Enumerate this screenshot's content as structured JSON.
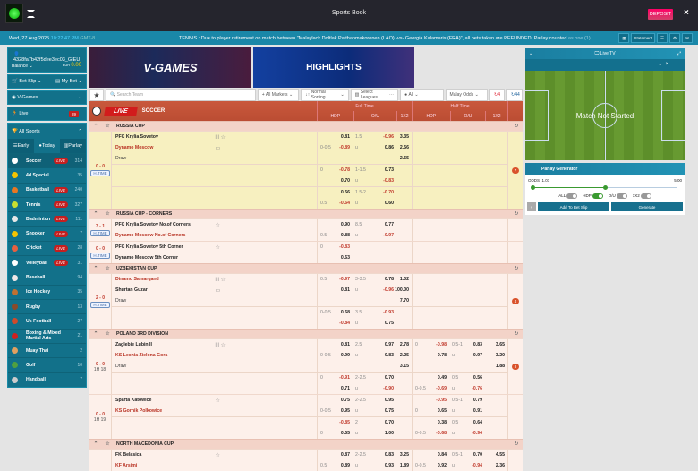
{
  "header": {
    "title": "Sports Book",
    "deposit": "DEPOSIT",
    "close": "×"
  },
  "ticker": {
    "date": "Wed, 27 Aug 2025",
    "time": "10:22:47 PM",
    "tz": "GMT-8",
    "message": "TENNIS : Due to player retirement on match between \"Malaylack Doltlak Patthanmakoronen (LAO) -vs- Georgia Kalamaris (FRA)\", all bets taken are REFUNDED. Parlay counted",
    "message_dim": "as one (1).",
    "statement": "Statement"
  },
  "account": {
    "username": "4328fa7b42f5dee3ec03_GIEU",
    "balance_label": "Balance",
    "currency": "EUR",
    "balance": "0.00"
  },
  "sidebar": {
    "bet_slip": "Bet Slip",
    "my_bet": "My Bet",
    "vgames": "V-Games",
    "live": "Live",
    "live_count": "89",
    "all_sports": "All Sports",
    "tabs": [
      "Early",
      "Today",
      "Parlay"
    ],
    "sports": [
      {
        "name": "Soccer",
        "live": true,
        "count": "314",
        "color": "#ffffff"
      },
      {
        "name": "4d Special",
        "live": false,
        "count": "35",
        "color": "#f5c400"
      },
      {
        "name": "Basketball",
        "live": true,
        "count": "240",
        "color": "#e87722"
      },
      {
        "name": "Tennis",
        "live": true,
        "count": "327",
        "color": "#c8e030"
      },
      {
        "name": "Badminton",
        "live": true,
        "count": "111",
        "color": "#e8e8e8"
      },
      {
        "name": "Snooker",
        "live": true,
        "count": "7",
        "color": "#f5c400"
      },
      {
        "name": "Cricket",
        "live": true,
        "count": "28",
        "color": "#e86040"
      },
      {
        "name": "Volleyball",
        "live": true,
        "count": "31",
        "color": "#ffffff"
      },
      {
        "name": "Baseball",
        "live": false,
        "count": "94",
        "color": "#f0e8e8"
      },
      {
        "name": "Ice Hockey",
        "live": false,
        "count": "35",
        "color": "#c07030"
      },
      {
        "name": "Rugby",
        "live": false,
        "count": "13",
        "color": "#8a4a2a"
      },
      {
        "name": "Us Football",
        "live": false,
        "count": "27",
        "color": "#d04a2a"
      },
      {
        "name": "Boxing & Mixed Martial Arts",
        "live": false,
        "count": "21",
        "color": "#d02020"
      },
      {
        "name": "Muay Thai",
        "live": false,
        "count": "2",
        "color": "#e0a060"
      },
      {
        "name": "Golf",
        "live": false,
        "count": "10",
        "color": "#50a040"
      },
      {
        "name": "Handball",
        "live": false,
        "count": "7",
        "color": "#cccccc"
      }
    ],
    "live_label": "LIVE"
  },
  "banners": {
    "vgames": "V-GAMES",
    "highlights": "HIGHLIGHTS"
  },
  "toolbar": {
    "search_placeholder": "Search Team",
    "markets": "+ All Markets",
    "sorting": "Normal Sorting",
    "leagues": "Select Leagues",
    "filter": "All",
    "odds": "Malay Odds",
    "refresh_live": "4",
    "refresh_all": "44"
  },
  "table": {
    "live": "LIVE",
    "sport": "SOCCER",
    "full_time": "Full Time",
    "half_time": "Half Time",
    "cols": [
      "HDP",
      "O/U",
      "1X2",
      "HDP",
      "O/U",
      "1X2"
    ]
  },
  "leagues": [
    {
      "name": "RUSSIA CUP",
      "matches": [
        {
          "score": "0 - 0",
          "status": "H.TIME",
          "boxed": true,
          "hl": true,
          "more": "7",
          "blocks": [
            [
              {
                "name": "PFC Krylia Sovetov",
                "type": "",
                "icons": "lıl ☆",
                "c": [
                  "",
                  "0.81",
                  "1.5",
                  "-0.96",
                  "3.35",
                  "",
                  "",
                  "",
                  "",
                  ""
                ]
              },
              {
                "name": "Dynamo Moscow",
                "type": "fav",
                "icons": "▭",
                "c": [
                  "0-0.5",
                  "-0.89",
                  "u",
                  "0.86",
                  "2.56",
                  "",
                  "",
                  "",
                  "",
                  ""
                ]
              },
              {
                "name": "Draw",
                "type": "draw",
                "c": [
                  "",
                  "",
                  "",
                  "",
                  "2.55",
                  "",
                  "",
                  "",
                  "",
                  ""
                ]
              }
            ],
            [
              {
                "c": [
                  "0",
                  "-0.78",
                  "1-1.5",
                  "0.73",
                  "",
                  "",
                  "",
                  "",
                  "",
                  ""
                ]
              },
              {
                "c": [
                  "",
                  "0.70",
                  "u",
                  "-0.83",
                  "",
                  "",
                  "",
                  "",
                  "",
                  ""
                ]
              }
            ],
            [
              {
                "c": [
                  "",
                  "0.56",
                  "1.5-2",
                  "-0.70",
                  "",
                  "",
                  "",
                  "",
                  "",
                  ""
                ]
              },
              {
                "c": [
                  "0.5",
                  "-0.64",
                  "u",
                  "0.60",
                  "",
                  "",
                  "",
                  "",
                  "",
                  ""
                ]
              }
            ]
          ]
        }
      ]
    },
    {
      "name": "RUSSIA CUP - CORNERS",
      "matches": [
        {
          "score": "3 - 1",
          "status": "H.TIME",
          "boxed": true,
          "blocks": [
            [
              {
                "name": "PFC Krylia Sovetov No.of Corners",
                "type": "",
                "icons": "☆",
                "c": [
                  "",
                  "0.90",
                  "8.5",
                  "0.77",
                  "",
                  "",
                  "",
                  "",
                  "",
                  ""
                ]
              },
              {
                "name": "Dynamo Moscow No.of Corners",
                "type": "fav",
                "c": [
                  "0.5",
                  "0.88",
                  "u",
                  "-0.97",
                  "",
                  "",
                  "",
                  "",
                  "",
                  ""
                ]
              }
            ]
          ]
        },
        {
          "score": "0 - 0",
          "status": "H.TIME",
          "boxed": true,
          "blocks": [
            [
              {
                "name": "PFC Krylia Sovetov 5th Corner",
                "type": "",
                "icons": "☆",
                "c": [
                  "0",
                  "-0.83",
                  "",
                  "",
                  "",
                  "",
                  "",
                  "",
                  "",
                  ""
                ]
              },
              {
                "name": "Dynamo Moscow 5th Corner",
                "type": "",
                "c": [
                  "",
                  "0.63",
                  "",
                  "",
                  "",
                  "",
                  "",
                  "",
                  "",
                  ""
                ]
              }
            ]
          ]
        }
      ]
    },
    {
      "name": "UZBEKISTAN CUP",
      "matches": [
        {
          "score": "2 - 0",
          "status": "H.TIME",
          "boxed": true,
          "more": "4",
          "blocks": [
            [
              {
                "name": "Dinamo Samarqand",
                "type": "fav",
                "icons": "lıl ☆",
                "c": [
                  "0.5",
                  "-0.97",
                  "3-3.5",
                  "0.78",
                  "1.02",
                  "",
                  "",
                  "",
                  "",
                  ""
                ]
              },
              {
                "name": "Shurtan Guzar",
                "type": "",
                "icons": "▭",
                "c": [
                  "",
                  "0.81",
                  "u",
                  "-0.96",
                  "100.00",
                  "",
                  "",
                  "",
                  "",
                  ""
                ]
              },
              {
                "name": "Draw",
                "type": "draw",
                "c": [
                  "",
                  "",
                  "",
                  "",
                  "7.70",
                  "",
                  "",
                  "",
                  "",
                  ""
                ]
              }
            ],
            [
              {
                "c": [
                  "0-0.5",
                  "0.68",
                  "3.5",
                  "-0.93",
                  "",
                  "",
                  "",
                  "",
                  "",
                  ""
                ]
              },
              {
                "c": [
                  "",
                  "-0.84",
                  "u",
                  "0.75",
                  "",
                  "",
                  "",
                  "",
                  "",
                  ""
                ]
              }
            ]
          ]
        }
      ]
    },
    {
      "name": "POLAND 3RD DIVISION",
      "matches": [
        {
          "score": "0 - 0",
          "status": "1H 18'",
          "boxed": false,
          "more": "8",
          "blocks": [
            [
              {
                "name": "Zaglebie Lubin II",
                "type": "",
                "icons": "lıl ☆",
                "c": [
                  "",
                  "0.81",
                  "2.5",
                  "0.97",
                  "2.78",
                  "0",
                  "-0.98",
                  "0.5-1",
                  "0.83",
                  "3.65"
                ]
              },
              {
                "name": "KS Lechia Zielona Gora",
                "type": "fav",
                "c": [
                  "0-0.5",
                  "0.99",
                  "u",
                  "0.83",
                  "2.25",
                  "",
                  "0.78",
                  "u",
                  "0.97",
                  "3.20"
                ]
              },
              {
                "name": "Draw",
                "type": "draw",
                "c": [
                  "",
                  "",
                  "",
                  "",
                  "3.15",
                  "",
                  "",
                  "",
                  "",
                  "1.88"
                ]
              }
            ],
            [
              {
                "c": [
                  "0",
                  "-0.91",
                  "2-2.5",
                  "0.70",
                  "",
                  "",
                  "0.49",
                  "0.5",
                  "0.56",
                  ""
                ]
              },
              {
                "c": [
                  "",
                  "0.71",
                  "u",
                  "-0.90",
                  "",
                  "0-0.5",
                  "-0.69",
                  "u",
                  "-0.76",
                  ""
                ]
              }
            ]
          ]
        },
        {
          "score": "0 - 0",
          "status": "1H 19'",
          "boxed": false,
          "blocks": [
            [
              {
                "name": "Sparta Katowice",
                "type": "",
                "icons": "☆",
                "c": [
                  "",
                  "0.75",
                  "2-2.5",
                  "0.95",
                  "",
                  "",
                  "-0.95",
                  "0.5-1",
                  "0.79",
                  ""
                ]
              },
              {
                "name": "KS Gornik Polkowice",
                "type": "fav",
                "c": [
                  "0-0.5",
                  "0.95",
                  "u",
                  "0.75",
                  "",
                  "0",
                  "0.65",
                  "u",
                  "0.91",
                  ""
                ]
              }
            ],
            [
              {
                "c": [
                  "",
                  "-0.85",
                  "2",
                  "0.70",
                  "",
                  "",
                  "0.38",
                  "0.5",
                  "0.64",
                  ""
                ]
              },
              {
                "c": [
                  "0",
                  "0.55",
                  "u",
                  "1.00",
                  "",
                  "0-0.5",
                  "-0.68",
                  "u",
                  "-0.94",
                  ""
                ]
              }
            ]
          ]
        }
      ]
    },
    {
      "name": "NORTH MACEDONIA CUP",
      "matches": [
        {
          "score": "",
          "status": "",
          "boxed": false,
          "blocks": [
            [
              {
                "name": "FK Belasica",
                "type": "",
                "icons": "☆",
                "c": [
                  "",
                  "0.87",
                  "2-2.5",
                  "0.83",
                  "3.25",
                  "",
                  "0.84",
                  "0.5-1",
                  "0.70",
                  "4.55"
                ]
              },
              {
                "name": "KF Arsimi",
                "type": "fav",
                "c": [
                  "0.5",
                  "0.89",
                  "u",
                  "0.93",
                  "1.89",
                  "0-0.5",
                  "0.92",
                  "u",
                  "-0.94",
                  "2.36"
                ]
              }
            ]
          ]
        }
      ]
    }
  ],
  "live_tv": {
    "title": "Live TV",
    "message": "Match Not Started"
  },
  "parlay": {
    "title": "Parlay Generator",
    "odds_label": "ODDS",
    "min": "1.01",
    "max": "5.00",
    "level": 0.5,
    "toggles": [
      {
        "label": "ALL",
        "on": false
      },
      {
        "label": "HDP",
        "on": true
      },
      {
        "label": "O/U",
        "on": false
      },
      {
        "label": "1X2",
        "on": false
      }
    ],
    "add": "Add To Bet Slip",
    "generate": "Generate"
  }
}
